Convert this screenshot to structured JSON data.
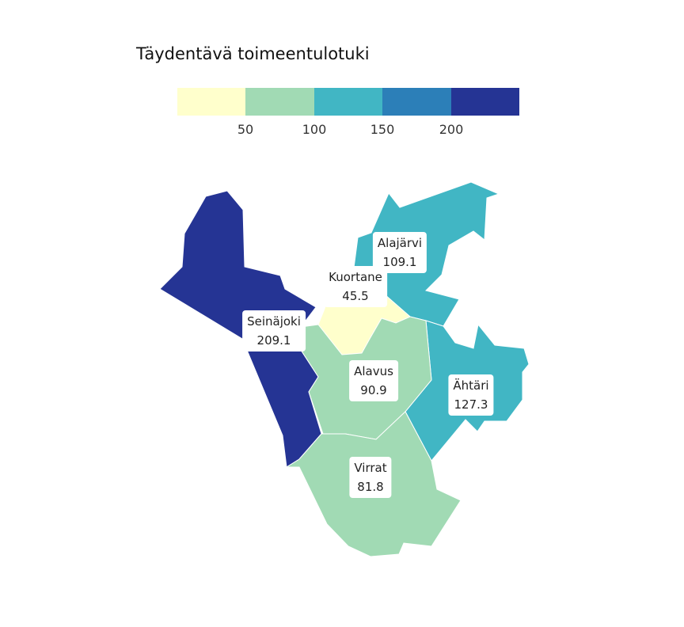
{
  "title": "Täydentävä toimeentulotuki",
  "legend": {
    "colors": [
      "#ffffcc",
      "#a1dab4",
      "#41b6c4",
      "#2c7fb8",
      "#253494"
    ],
    "ticks": [
      "50",
      "100",
      "150",
      "200"
    ]
  },
  "map_data": {
    "type": "choropleth",
    "regions": [
      {
        "name": "Seinäjoki",
        "value": "209.1",
        "color": "#253494"
      },
      {
        "name": "Kuortane",
        "value": "45.5",
        "color": "#ffffcc"
      },
      {
        "name": "Alajärvi",
        "value": "109.1",
        "color": "#41b6c4"
      },
      {
        "name": "Alavus",
        "value": "90.9",
        "color": "#a1dab4"
      },
      {
        "name": "Ähtäri",
        "value": "127.3",
        "color": "#41b6c4"
      },
      {
        "name": "Virrat",
        "value": "81.8",
        "color": "#a1dab4"
      }
    ]
  }
}
